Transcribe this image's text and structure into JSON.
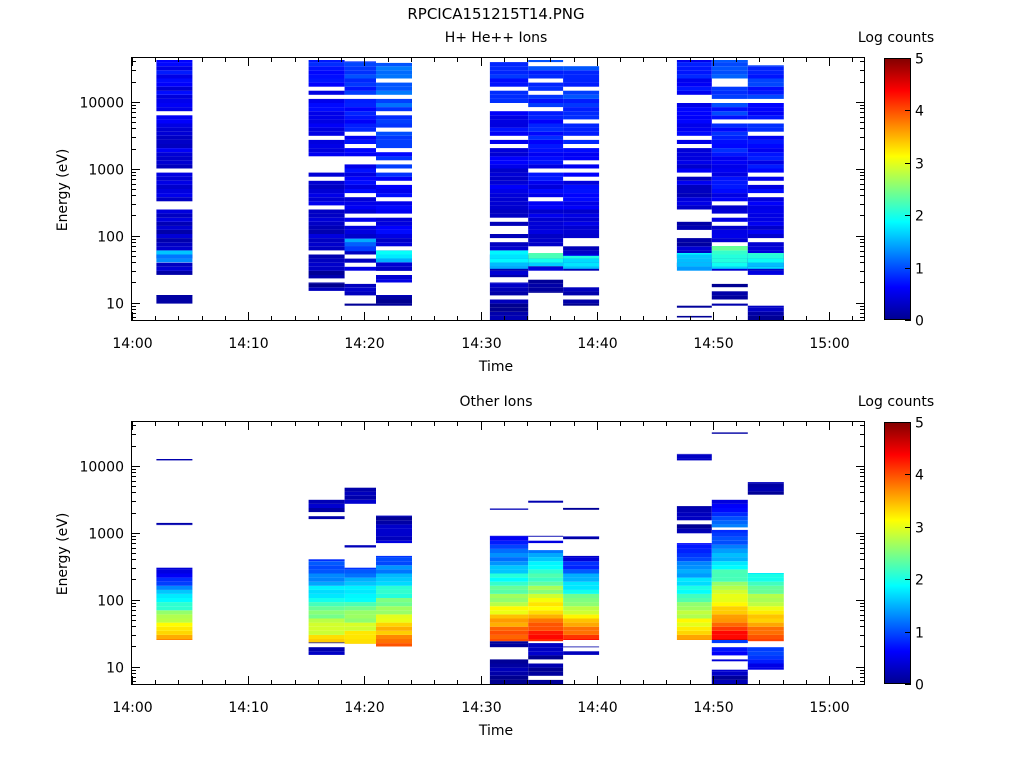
{
  "figure_title": "RPCICA151215T14.PNG",
  "colors": {
    "jet": [
      "#00008f",
      "#0000ff",
      "#0080ff",
      "#00ffff",
      "#80ff80",
      "#ffff00",
      "#ff8000",
      "#ff0000",
      "#800000"
    ]
  },
  "chart_data": [
    {
      "type": "heatmap",
      "title": "H+ He++ Ions",
      "xlabel": "Time",
      "ylabel": "Energy (eV)",
      "x_ticks": [
        "14:00",
        "14:10",
        "14:20",
        "14:30",
        "14:40",
        "14:50",
        "15:00"
      ],
      "x_tick_minutes": [
        0,
        10,
        20,
        30,
        40,
        50,
        60
      ],
      "xlim_minutes": [
        0,
        63
      ],
      "y_scale": "log",
      "ylim": [
        5.5,
        45000
      ],
      "y_ticks": [
        10,
        100,
        1000,
        10000
      ],
      "y_tick_labels": [
        "10",
        "100",
        "1000",
        "10000"
      ],
      "colorbar": {
        "label": "Log counts",
        "min": 0,
        "max": 5,
        "ticks": [
          "0",
          "1",
          "2",
          "3",
          "4",
          "5"
        ]
      },
      "columns": [
        {
          "t_start": 2.1,
          "t_end": 5.2,
          "segments": [
            {
              "e_min": 26,
              "e_max": 42000,
              "v_min": 0.2,
              "v_max": 0.6
            },
            {
              "e_min": 40,
              "e_max": 60,
              "v_min": 1.2,
              "v_max": 1.5
            },
            {
              "e_min": 9,
              "e_max": 13,
              "v_min": 0.1,
              "v_max": 0.2
            }
          ]
        },
        {
          "t_start": 15.2,
          "t_end": 18.3,
          "segments": [
            {
              "e_min": 23,
              "e_max": 42000,
              "v_min": 0.2,
              "v_max": 0.7
            },
            {
              "e_min": 15,
              "e_max": 20,
              "v_min": 0.1,
              "v_max": 0.2
            }
          ]
        },
        {
          "t_start": 18.3,
          "t_end": 21.0,
          "segments": [
            {
              "e_min": 30,
              "e_max": 40000,
              "v_min": 0.3,
              "v_max": 0.9
            },
            {
              "e_min": 60,
              "e_max": 90,
              "v_min": 1.0,
              "v_max": 1.4
            },
            {
              "e_min": 9,
              "e_max": 19,
              "v_min": 0.1,
              "v_max": 0.2
            }
          ]
        },
        {
          "t_start": 21.0,
          "t_end": 24.1,
          "segments": [
            {
              "e_min": 20,
              "e_max": 38000,
              "v_min": 0.3,
              "v_max": 1.2
            },
            {
              "e_min": 40,
              "e_max": 60,
              "v_min": 1.4,
              "v_max": 1.9
            },
            {
              "e_min": 9,
              "e_max": 13,
              "v_min": 0.1,
              "v_max": 0.2
            }
          ]
        },
        {
          "t_start": 30.8,
          "t_end": 34.1,
          "segments": [
            {
              "e_min": 24,
              "e_max": 42000,
              "v_min": 0.2,
              "v_max": 0.8
            },
            {
              "e_min": 32,
              "e_max": 60,
              "v_min": 1.5,
              "v_max": 2.0
            },
            {
              "e_min": 5.5,
              "e_max": 20,
              "v_min": 0.1,
              "v_max": 0.2
            }
          ]
        },
        {
          "t_start": 34.1,
          "t_end": 37.1,
          "segments": [
            {
              "e_min": 30,
              "e_max": 42000,
              "v_min": 0.3,
              "v_max": 0.9
            },
            {
              "e_min": 35,
              "e_max": 55,
              "v_min": 1.7,
              "v_max": 2.2
            },
            {
              "e_min": 14,
              "e_max": 22,
              "v_min": 0.1,
              "v_max": 0.2
            }
          ]
        },
        {
          "t_start": 37.1,
          "t_end": 40.2,
          "segments": [
            {
              "e_min": 30,
              "e_max": 38000,
              "v_min": 0.3,
              "v_max": 1.0
            },
            {
              "e_min": 32,
              "e_max": 50,
              "v_min": 1.5,
              "v_max": 2.0
            },
            {
              "e_min": 9,
              "e_max": 19,
              "v_min": 0.1,
              "v_max": 0.2
            }
          ]
        },
        {
          "t_start": 46.9,
          "t_end": 49.9,
          "segments": [
            {
              "e_min": 30,
              "e_max": 42000,
              "v_min": 0.2,
              "v_max": 0.7
            },
            {
              "e_min": 30,
              "e_max": 55,
              "v_min": 1.3,
              "v_max": 1.7
            },
            {
              "e_min": 6,
              "e_max": 9,
              "v_min": 0.1,
              "v_max": 0.2
            }
          ]
        },
        {
          "t_start": 49.9,
          "t_end": 53.0,
          "segments": [
            {
              "e_min": 30,
              "e_max": 42000,
              "v_min": 0.3,
              "v_max": 1.0
            },
            {
              "e_min": 32,
              "e_max": 70,
              "v_min": 1.8,
              "v_max": 2.3
            },
            {
              "e_min": 9,
              "e_max": 19,
              "v_min": 0.1,
              "v_max": 0.2
            }
          ]
        },
        {
          "t_start": 53.0,
          "t_end": 56.1,
          "segments": [
            {
              "e_min": 26,
              "e_max": 35000,
              "v_min": 0.3,
              "v_max": 0.9
            },
            {
              "e_min": 32,
              "e_max": 55,
              "v_min": 1.5,
              "v_max": 2.0
            },
            {
              "e_min": 5.5,
              "e_max": 9,
              "v_min": 0.1,
              "v_max": 0.2
            }
          ]
        }
      ]
    },
    {
      "type": "heatmap",
      "title": "Other Ions",
      "xlabel": "Time",
      "ylabel": "Energy (eV)",
      "x_ticks": [
        "14:00",
        "14:10",
        "14:20",
        "14:30",
        "14:40",
        "14:50",
        "15:00"
      ],
      "x_tick_minutes": [
        0,
        10,
        20,
        30,
        40,
        50,
        60
      ],
      "xlim_minutes": [
        0,
        63
      ],
      "y_scale": "log",
      "ylim": [
        5.5,
        45000
      ],
      "y_ticks": [
        10,
        100,
        1000,
        10000
      ],
      "y_tick_labels": [
        "10",
        "100",
        "1000",
        "10000"
      ],
      "colorbar": {
        "label": "Log counts",
        "min": 0,
        "max": 5,
        "ticks": [
          "0",
          "1",
          "2",
          "3",
          "4",
          "5"
        ]
      },
      "columns": [
        {
          "t_start": 2.1,
          "t_end": 5.2,
          "segments": [
            {
              "e_min": 25,
              "e_max": 300,
              "v_min": 3.8,
              "v_max": 0.3
            },
            {
              "e_min": 1300,
              "e_max": 1400,
              "v_min": 0.2,
              "v_max": 0.2
            },
            {
              "e_min": 12000,
              "e_max": 12600,
              "v_min": 0.2,
              "v_max": 0.2
            }
          ]
        },
        {
          "t_start": 15.2,
          "t_end": 18.3,
          "segments": [
            {
              "e_min": 15,
              "e_max": 23,
              "v_min": 0.2,
              "v_max": 0.2
            },
            {
              "e_min": 23,
              "e_max": 400,
              "v_min": 3.3,
              "v_max": 0.8
            },
            {
              "e_min": 1600,
              "e_max": 3200,
              "v_min": 0.2,
              "v_max": 0.2
            },
            {
              "e_min": 19000,
              "e_max": 20000,
              "v_min": 0.2,
              "v_max": 0.2
            }
          ]
        },
        {
          "t_start": 18.3,
          "t_end": 21.0,
          "segments": [
            {
              "e_min": 22,
              "e_max": 300,
              "v_min": 3.5,
              "v_max": 1.0
            },
            {
              "e_min": 600,
              "e_max": 650,
              "v_min": 0.2,
              "v_max": 0.2
            },
            {
              "e_min": 2700,
              "e_max": 4700,
              "v_min": 0.2,
              "v_max": 0.3
            },
            {
              "e_min": 13500,
              "e_max": 14500,
              "v_min": 0.2,
              "v_max": 0.2
            }
          ]
        },
        {
          "t_start": 21.0,
          "t_end": 24.1,
          "segments": [
            {
              "e_min": 20,
              "e_max": 450,
              "v_min": 4.0,
              "v_max": 0.8
            },
            {
              "e_min": 700,
              "e_max": 1800,
              "v_min": 0.3,
              "v_max": 0.2
            }
          ]
        },
        {
          "t_start": 30.8,
          "t_end": 34.1,
          "segments": [
            {
              "e_min": 5.5,
              "e_max": 24,
              "v_min": 0.1,
              "v_max": 0.2
            },
            {
              "e_min": 24,
              "e_max": 900,
              "v_min": 4.2,
              "v_max": 0.5
            },
            {
              "e_min": 2200,
              "e_max": 2300,
              "v_min": 0.2,
              "v_max": 0.2
            },
            {
              "e_min": 9500,
              "e_max": 10000,
              "v_min": 0.2,
              "v_max": 0.2
            }
          ]
        },
        {
          "t_start": 34.1,
          "t_end": 37.1,
          "segments": [
            {
              "e_min": 5.5,
              "e_max": 24,
              "v_min": 0.1,
              "v_max": 0.2
            },
            {
              "e_min": 24,
              "e_max": 550,
              "v_min": 4.4,
              "v_max": 1.2
            },
            {
              "e_min": 700,
              "e_max": 900,
              "v_min": 0.3,
              "v_max": 0.3
            },
            {
              "e_min": 2800,
              "e_max": 3000,
              "v_min": 0.2,
              "v_max": 0.2
            }
          ]
        },
        {
          "t_start": 37.1,
          "t_end": 40.2,
          "segments": [
            {
              "e_min": 15,
              "e_max": 20,
              "v_min": 0.2,
              "v_max": 0.2
            },
            {
              "e_min": 25,
              "e_max": 450,
              "v_min": 4.3,
              "v_max": 0.4
            },
            {
              "e_min": 800,
              "e_max": 880,
              "v_min": 0.2,
              "v_max": 0.2
            },
            {
              "e_min": 2200,
              "e_max": 2350,
              "v_min": 0.2,
              "v_max": 0.2
            },
            {
              "e_min": 20500,
              "e_max": 21500,
              "v_min": 0.2,
              "v_max": 0.2
            }
          ]
        },
        {
          "t_start": 46.9,
          "t_end": 49.9,
          "segments": [
            {
              "e_min": 25,
              "e_max": 700,
              "v_min": 3.6,
              "v_max": 0.5
            },
            {
              "e_min": 1000,
              "e_max": 2500,
              "v_min": 0.2,
              "v_max": 0.2
            },
            {
              "e_min": 12000,
              "e_max": 15000,
              "v_min": 0.2,
              "v_max": 0.2
            }
          ]
        },
        {
          "t_start": 49.9,
          "t_end": 53.0,
          "segments": [
            {
              "e_min": 5.5,
              "e_max": 9,
              "v_min": 0.1,
              "v_max": 0.2
            },
            {
              "e_min": 12,
              "e_max": 25,
              "v_min": 0.3,
              "v_max": 0.8
            },
            {
              "e_min": 25,
              "e_max": 1100,
              "v_min": 4.5,
              "v_max": 0.6
            },
            {
              "e_min": 1200,
              "e_max": 3100,
              "v_min": 1.2,
              "v_max": 0.4
            },
            {
              "e_min": 30000,
              "e_max": 31500,
              "v_min": 0.2,
              "v_max": 0.2
            }
          ]
        },
        {
          "t_start": 53.0,
          "t_end": 56.1,
          "segments": [
            {
              "e_min": 9,
              "e_max": 24,
              "v_min": 0.4,
              "v_max": 1.2
            },
            {
              "e_min": 24,
              "e_max": 250,
              "v_min": 4.2,
              "v_max": 1.8
            },
            {
              "e_min": 3700,
              "e_max": 5700,
              "v_min": 0.2,
              "v_max": 0.3
            }
          ]
        }
      ]
    }
  ]
}
